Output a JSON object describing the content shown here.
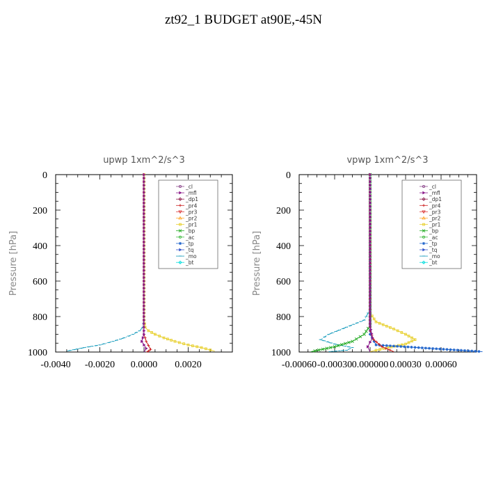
{
  "title": "zt92_1  BUDGET at90E,-45N",
  "legend_entries": [
    {
      "label": "_cl",
      "color": "#8e4b8e",
      "marker": "circle"
    },
    {
      "label": "_mfl",
      "color": "#8b1a8b",
      "marker": "tri-right"
    },
    {
      "label": "_dp1",
      "color": "#8b1a4a",
      "marker": "diamond"
    },
    {
      "label": "_pr4",
      "color": "#cc2222",
      "marker": "plus"
    },
    {
      "label": "_pr3",
      "color": "#dd4444",
      "marker": "tri-down"
    },
    {
      "label": "_pr2",
      "color": "#ffaa33",
      "marker": "tri-up"
    },
    {
      "label": "_pr1",
      "color": "#e8d030",
      "marker": "square"
    },
    {
      "label": "_bp",
      "color": "#22aa22",
      "marker": "x"
    },
    {
      "label": "_ac",
      "color": "#44bb44",
      "marker": "circle"
    },
    {
      "label": "_tp",
      "color": "#2266cc",
      "marker": "star"
    },
    {
      "label": "_tq",
      "color": "#3355cc",
      "marker": "tri-right"
    },
    {
      "label": "_mo",
      "color": "#1199bb",
      "marker": "dash"
    },
    {
      "label": "_bt",
      "color": "#00dddd",
      "marker": "diamond"
    }
  ],
  "chart_data": [
    {
      "type": "line",
      "title": "upwp   1xm^2/s^3",
      "ylabel": "Pressure  [hPa]",
      "xlabel": "",
      "xlim": [
        -0.004,
        0.004
      ],
      "ylim": [
        1000,
        0
      ],
      "xticks": [
        -0.004,
        -0.002,
        0.0,
        0.002
      ],
      "xtick_labels": [
        "-0.0040",
        "-0.0020",
        "0.0000",
        "0.0020"
      ],
      "yticks": [
        0,
        200,
        400,
        600,
        800,
        1000
      ],
      "ytick_labels": [
        "0",
        "200",
        "400",
        "600",
        "800",
        "1000"
      ],
      "legend_position": "top-right",
      "series": [
        {
          "name": "_mo",
          "color": "#1199bb",
          "style": "dashdot",
          "x": [
            0,
            0,
            -5e-05,
            -0.0002,
            -0.0005,
            -0.0009,
            -0.0014,
            -0.002,
            -0.0027,
            -0.0035
          ],
          "y": [
            0,
            820,
            860,
            880,
            900,
            920,
            940,
            960,
            975,
            995
          ]
        },
        {
          "name": "_pr1",
          "color": "#e8d030",
          "style": "solid",
          "x": [
            0,
            0,
            5e-05,
            0.0002,
            0.0005,
            0.0009,
            0.0014,
            0.002,
            0.0026,
            0.0032
          ],
          "y": [
            0,
            820,
            860,
            880,
            900,
            920,
            940,
            960,
            975,
            995
          ]
        },
        {
          "name": "_pr4",
          "color": "#cc2222",
          "style": "solid",
          "x": [
            0,
            0,
            0.0001,
            0.0003,
            0.0002,
            0.0001
          ],
          "y": [
            0,
            900,
            940,
            985,
            995,
            1000
          ]
        },
        {
          "name": "_mfl",
          "color": "#8b1a8b",
          "style": "solid",
          "x": [
            0,
            0,
            -0.0001,
            0.0001,
            0
          ],
          "y": [
            0,
            900,
            940,
            980,
            1000
          ]
        }
      ]
    },
    {
      "type": "line",
      "title": "vpwp   1xm^2/s^3",
      "ylabel": "Pressure  [hPa]",
      "xlabel": "",
      "xlim": [
        -0.0006,
        0.0009
      ],
      "ylim": [
        1000,
        0
      ],
      "xticks": [
        -0.0006,
        -0.0003,
        0.0,
        0.0003,
        0.0006
      ],
      "xtick_labels": [
        "-0.00060",
        "-0.00030",
        "0.000000",
        "0.00030",
        "0.00060"
      ],
      "yticks": [
        0,
        200,
        400,
        600,
        800,
        1000
      ],
      "ytick_labels": [
        "0",
        "200",
        "400",
        "600",
        "800",
        "1000"
      ],
      "legend_position": "top-right",
      "series": [
        {
          "name": "_mo",
          "color": "#1199bb",
          "style": "dashdot",
          "x": [
            0,
            0,
            -5e-05,
            -0.0002,
            -0.00035,
            -0.00042,
            -0.0003,
            -0.00015,
            -0.0002,
            -0.00035
          ],
          "y": [
            0,
            760,
            820,
            860,
            900,
            930,
            955,
            975,
            990,
            998
          ]
        },
        {
          "name": "_pr1",
          "color": "#e8d030",
          "style": "solid",
          "x": [
            0,
            0,
            5e-05,
            0.0002,
            0.0003,
            0.00038,
            0.0003,
            0.00015,
            5e-05,
            0.0
          ],
          "y": [
            0,
            780,
            830,
            870,
            900,
            930,
            955,
            975,
            990,
            998
          ]
        },
        {
          "name": "_bp",
          "color": "#22aa22",
          "style": "solid",
          "x": [
            0,
            0,
            -5e-05,
            -0.00015,
            -0.0003,
            -0.0005
          ],
          "y": [
            0,
            850,
            900,
            940,
            970,
            998
          ]
        },
        {
          "name": "_tp",
          "color": "#2266cc",
          "style": "solid",
          "x": [
            0,
            0,
            5e-05,
            0.00095
          ],
          "y": [
            0,
            900,
            960,
            998
          ]
        },
        {
          "name": "_pr4",
          "color": "#cc2222",
          "style": "solid",
          "x": [
            0,
            0,
            3e-05,
            0.0001,
            0.0002
          ],
          "y": [
            0,
            880,
            930,
            970,
            998
          ]
        },
        {
          "name": "_mfl",
          "color": "#8b1a8b",
          "style": "solid",
          "x": [
            0,
            0,
            2e-05,
            -2e-05,
            0
          ],
          "y": [
            0,
            850,
            920,
            970,
            1000
          ]
        }
      ]
    }
  ]
}
